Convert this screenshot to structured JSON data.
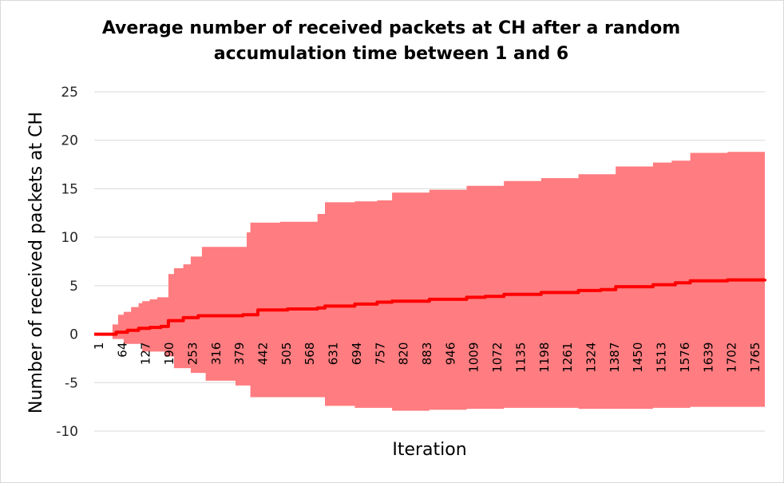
{
  "chart_data": {
    "type": "area",
    "title_line1": "Average number of received packets at CH after a  random",
    "title_line2": "accumulation time between 1 and 6",
    "xlabel": "Iteration",
    "ylabel": "Number of received packets at CH",
    "ylim": [
      -10,
      25
    ],
    "yticks": [
      25,
      20,
      15,
      10,
      5,
      0,
      -5,
      -10
    ],
    "xlim": [
      1,
      1800
    ],
    "xtick_labels": [
      "1",
      "64",
      "127",
      "190",
      "253",
      "316",
      "379",
      "442",
      "505",
      "568",
      "631",
      "694",
      "757",
      "820",
      "883",
      "946",
      "1009",
      "1072",
      "1135",
      "1198",
      "1261",
      "1324",
      "1387",
      "1450",
      "1513",
      "1576",
      "1639",
      "1702",
      "1765"
    ],
    "grid": true,
    "series": [
      {
        "role": "upper-bound",
        "color": "#ff7c80",
        "x": [
          1,
          45,
          50,
          65,
          80,
          100,
          120,
          130,
          150,
          170,
          190,
          200,
          215,
          240,
          260,
          290,
          380,
          410,
          420,
          500,
          590,
          600,
          620,
          700,
          760,
          800,
          900,
          1000,
          1100,
          1200,
          1300,
          1350,
          1400,
          1500,
          1550,
          1600,
          1700,
          1800
        ],
        "y": [
          0,
          0,
          1.0,
          2.0,
          2.3,
          2.8,
          3.2,
          3.4,
          3.6,
          3.8,
          3.8,
          6.2,
          6.8,
          7.2,
          8.0,
          9.0,
          9.0,
          10.5,
          11.5,
          11.6,
          11.6,
          12.4,
          13.6,
          13.7,
          13.8,
          14.6,
          14.9,
          15.3,
          15.8,
          16.1,
          16.5,
          16.5,
          17.3,
          17.7,
          17.9,
          18.7,
          18.8,
          18.8
        ]
      },
      {
        "role": "lower-bound",
        "color": "#ff7c80",
        "x": [
          1,
          45,
          50,
          80,
          130,
          190,
          215,
          260,
          300,
          380,
          420,
          500,
          590,
          620,
          700,
          800,
          900,
          1000,
          1100,
          1200,
          1300,
          1400,
          1500,
          1600,
          1700,
          1800
        ],
        "y": [
          0,
          0,
          -0.5,
          -1.0,
          -1.8,
          -2.3,
          -3.5,
          -4.0,
          -4.8,
          -5.3,
          -6.5,
          -6.5,
          -6.5,
          -7.4,
          -7.6,
          -7.9,
          -7.8,
          -7.7,
          -7.6,
          -7.6,
          -7.7,
          -7.7,
          -7.6,
          -7.5,
          -7.5,
          -7.5
        ]
      },
      {
        "role": "average",
        "color": "#ff0000",
        "x": [
          1,
          45,
          60,
          90,
          120,
          150,
          180,
          200,
          240,
          280,
          400,
          440,
          520,
          600,
          620,
          700,
          760,
          800,
          900,
          1000,
          1050,
          1100,
          1200,
          1300,
          1360,
          1400,
          1500,
          1560,
          1600,
          1700,
          1800
        ],
        "y": [
          0,
          0,
          0.2,
          0.4,
          0.6,
          0.7,
          0.8,
          1.4,
          1.7,
          1.9,
          2.0,
          2.5,
          2.6,
          2.7,
          2.9,
          3.1,
          3.3,
          3.4,
          3.6,
          3.8,
          3.9,
          4.1,
          4.3,
          4.5,
          4.6,
          4.9,
          5.1,
          5.3,
          5.5,
          5.6,
          5.7
        ]
      }
    ]
  }
}
